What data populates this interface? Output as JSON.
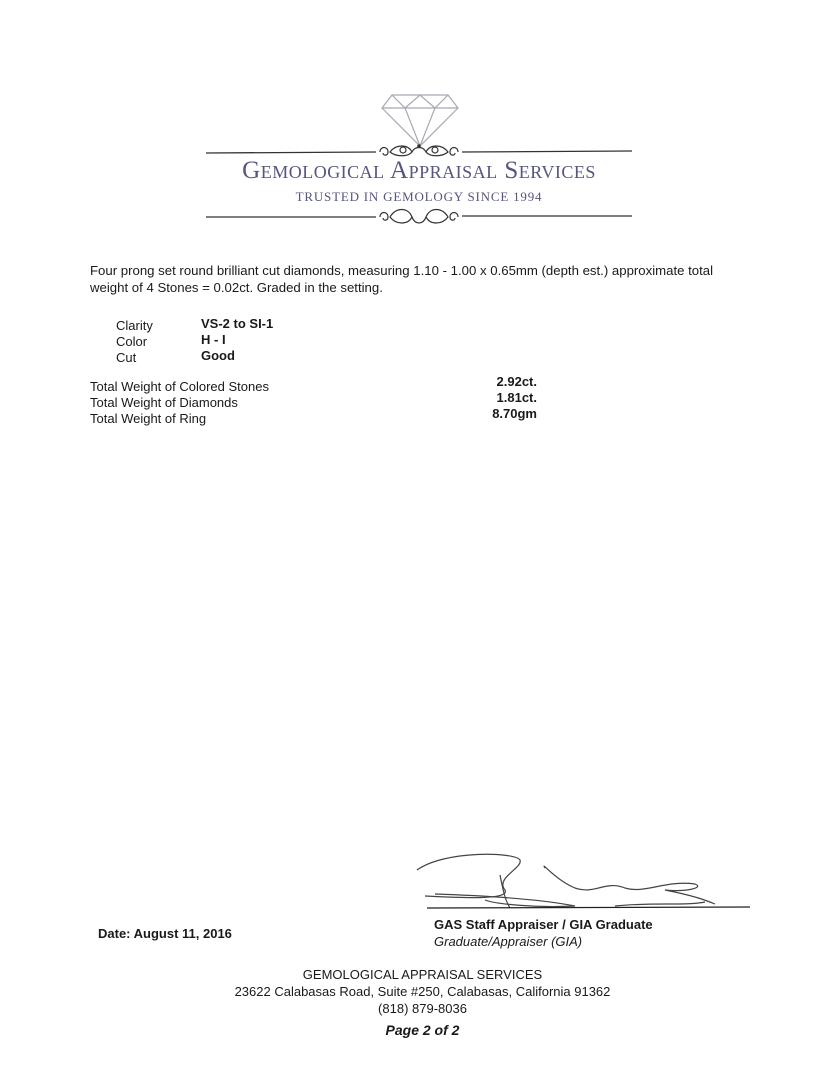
{
  "logo": {
    "title": "Gemological Appraisal Services",
    "tagline": "TRUSTED IN GEMOLOGY SINCE 1994",
    "brand_color": "#55557e",
    "icon": "diamond-icon"
  },
  "description": "Four prong set round brilliant cut diamonds, measuring 1.10 - 1.00 x 0.65mm (depth est.) approximate total weight of 4 Stones = 0.02ct. Graded in the setting.",
  "grading": [
    {
      "label": "Clarity",
      "value": "VS-2 to SI-1"
    },
    {
      "label": "Color",
      "value": "H - I"
    },
    {
      "label": "Cut",
      "value": "Good"
    }
  ],
  "totals": [
    {
      "label": "Total Weight of Colored Stones",
      "value": "2.92ct."
    },
    {
      "label": "Total Weight of Diamonds",
      "value": "1.81ct."
    },
    {
      "label": "Total Weight of Ring",
      "value": "8.70gm"
    }
  ],
  "date": "Date: August 11, 2016",
  "signature": {
    "title": "GAS Staff Appraiser / GIA Graduate",
    "subtitle": "Graduate/Appraiser (GIA)"
  },
  "footer": {
    "company": "GEMOLOGICAL APPRAISAL SERVICES",
    "address": "23622 Calabasas Road, Suite #250, Calabasas, California 91362",
    "phone": "(818) 879-8036",
    "page": "Page 2 of 2"
  }
}
